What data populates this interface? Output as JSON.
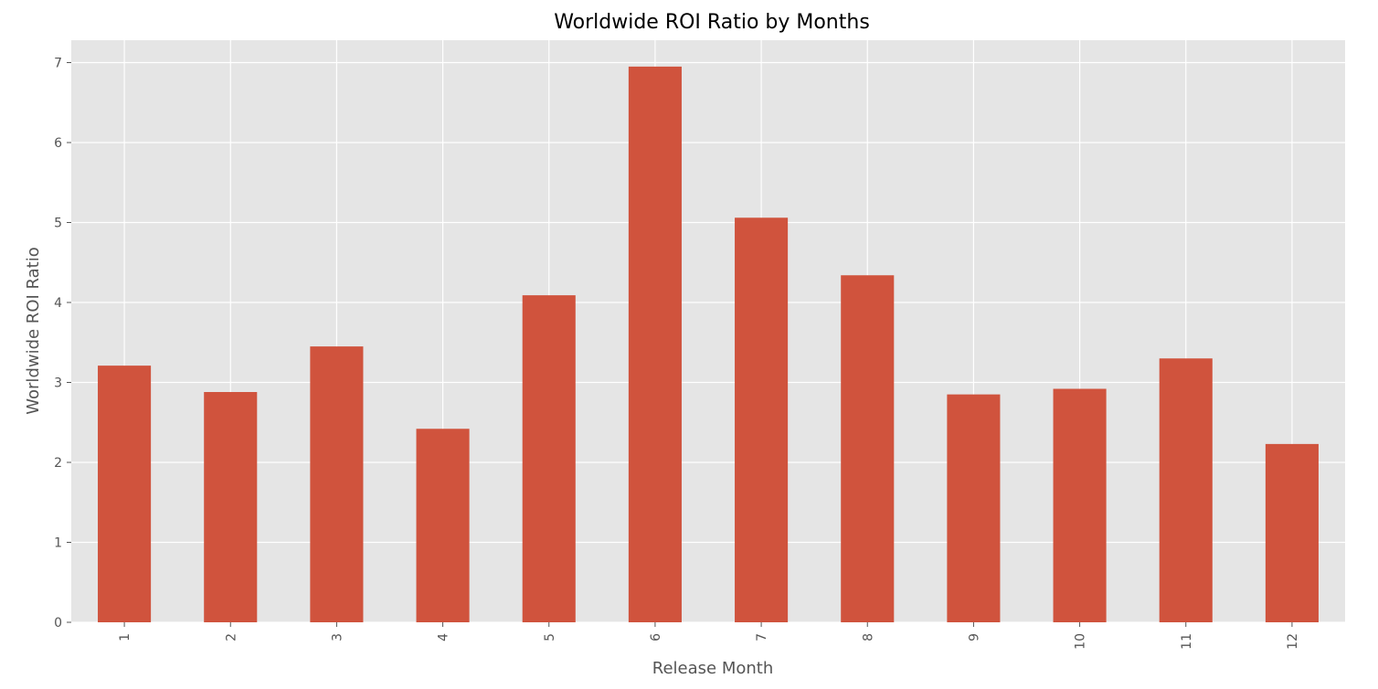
{
  "chart_data": {
    "type": "bar",
    "title": "Worldwide ROI Ratio by Months",
    "xlabel": "Release Month",
    "ylabel": "Worldwide ROI Ratio",
    "categories": [
      "1",
      "2",
      "3",
      "4",
      "5",
      "6",
      "7",
      "8",
      "9",
      "10",
      "11",
      "12"
    ],
    "values": [
      3.21,
      2.88,
      3.45,
      2.42,
      4.09,
      6.95,
      5.06,
      4.34,
      2.85,
      2.92,
      3.3,
      2.23
    ],
    "ylim": [
      0,
      7.28
    ],
    "yticks": [
      0,
      1,
      2,
      3,
      4,
      5,
      6,
      7
    ],
    "grid": true,
    "legend": "none",
    "colors": {
      "bar": "#d0533d",
      "plot_background": "#e5e5e5",
      "grid": "#ffffff",
      "text": "#555555"
    }
  }
}
